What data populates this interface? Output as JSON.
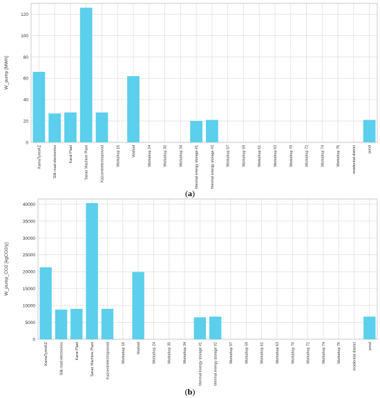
{
  "chart_data": [
    {
      "type": "bar",
      "panel": "(a)",
      "ylabel": "W_pump [MWh]",
      "xlabel": "",
      "title": "",
      "ylim": [
        0,
        130
      ],
      "yticks": [
        0,
        20,
        40,
        60,
        80,
        100,
        120
      ],
      "grid": true,
      "bar_color": "#5bcfec",
      "categories": [
        "KamaTyresKZ",
        "Silk road electronics",
        "Karat Plast",
        "Saran Machine Plant",
        "Kazcentrelectroprovod",
        "Workshop 16",
        "Voshod",
        "Workshop 24",
        "Workshop 30",
        "Workshop 34",
        "thermal energy storage #1",
        "thermal energy storage #2",
        "Workshop 57",
        "Workshop 59",
        "Workshop 61",
        "Workshop 63",
        "Workshop 70",
        "Workshop 72",
        "Workshop 74",
        "Workshop 76",
        "residential district",
        "pond"
      ],
      "values": [
        66,
        27,
        28,
        126,
        28,
        0,
        62,
        0,
        0,
        0,
        20,
        21,
        0,
        0,
        0,
        0,
        0,
        0,
        0,
        0,
        0,
        21
      ]
    },
    {
      "type": "bar",
      "panel": "(b)",
      "ylabel": "W_pump_CO2 [kgCO2/y]",
      "xlabel": "",
      "title": "",
      "ylim": [
        0,
        41500
      ],
      "yticks": [
        0,
        5000,
        10000,
        15000,
        20000,
        25000,
        30000,
        35000,
        40000
      ],
      "grid": true,
      "bar_color": "#5bcfec",
      "categories": [
        "KamaTyresKZ",
        "Silk road electronics",
        "Karat Plast",
        "Saran Machine Plant",
        "Kazcentrelectroprovod",
        "Workshop 16",
        "Voshod",
        "Workshop 24",
        "Workshop 30",
        "Workshop 34",
        "thermal energy storage #1",
        "thermal energy storage #2",
        "Workshop 57",
        "Workshop 59",
        "Workshop 61",
        "Workshop 63",
        "Workshop 70",
        "Workshop 72",
        "Workshop 74",
        "Workshop 76",
        "residential district",
        "pond"
      ],
      "values": [
        21300,
        8800,
        9000,
        40300,
        9000,
        0,
        19900,
        0,
        0,
        0,
        6500,
        6700,
        0,
        0,
        0,
        0,
        0,
        0,
        0,
        0,
        0,
        6700
      ]
    }
  ],
  "captions": {
    "a": "a",
    "b": "b"
  }
}
